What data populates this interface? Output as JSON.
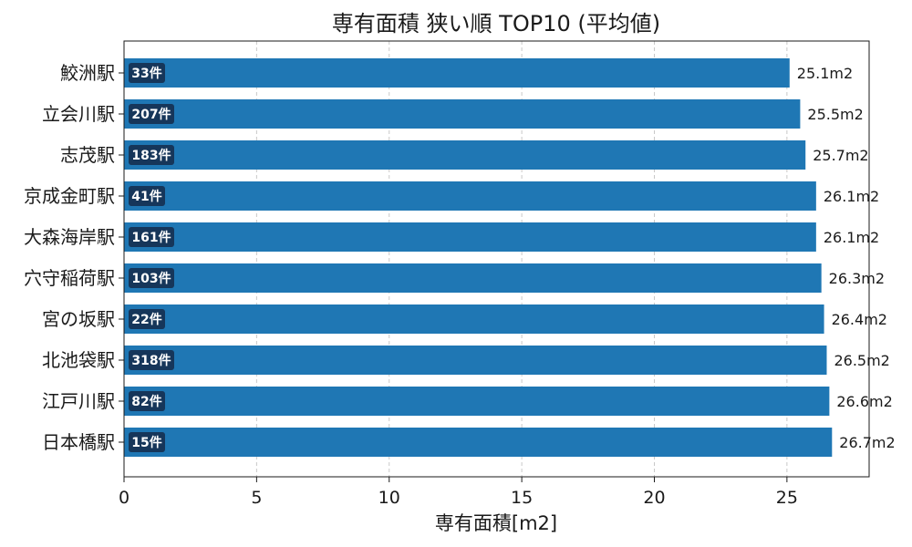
{
  "chart_data": {
    "type": "bar",
    "orientation": "horizontal",
    "title": "専有面積 狭い順 TOP10 (平均値)",
    "xlabel": "専有面積[m2]",
    "ylabel": "",
    "categories": [
      "鮫洲駅",
      "立会川駅",
      "志茂駅",
      "京成金町駅",
      "大森海岸駅",
      "穴守稲荷駅",
      "宮の坂駅",
      "北池袋駅",
      "江戸川駅",
      "日本橋駅"
    ],
    "values": [
      25.1,
      25.5,
      25.7,
      26.1,
      26.1,
      26.3,
      26.4,
      26.5,
      26.6,
      26.7
    ],
    "value_labels": [
      "25.1m2",
      "25.5m2",
      "25.7m2",
      "26.1m2",
      "26.1m2",
      "26.3m2",
      "26.4m2",
      "26.5m2",
      "26.6m2",
      "26.7m2"
    ],
    "counts": [
      "33件",
      "207件",
      "183件",
      "41件",
      "161件",
      "103件",
      "22件",
      "318件",
      "82件",
      "15件"
    ],
    "xlim": [
      0,
      28.1
    ],
    "xticks": [
      0,
      5,
      10,
      15,
      20,
      25
    ],
    "grid": "vertical dashed",
    "legend": "none",
    "bar_color": "#1f77b4",
    "badge_color": "#16365a"
  }
}
